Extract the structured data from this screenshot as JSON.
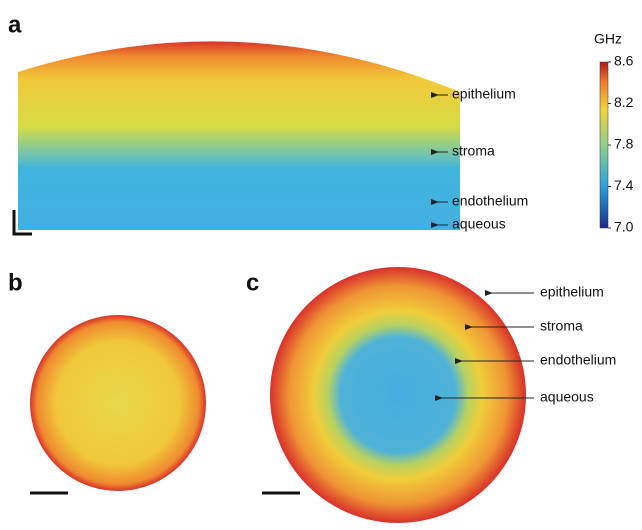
{
  "panels": [
    {
      "label": "a",
      "annotations": [
        "epithelium",
        "stroma",
        "endothelium",
        "aqueous"
      ]
    },
    {
      "label": "b"
    },
    {
      "label": "c",
      "annotations": [
        "epithelium",
        "stroma",
        "endothelium",
        "aqueous"
      ]
    }
  ],
  "colorbar": {
    "unit": "GHz",
    "ticks": [
      {
        "value": 7,
        "label": "7.0"
      },
      7.4,
      7.8,
      8.2,
      8.6
    ]
  }
}
